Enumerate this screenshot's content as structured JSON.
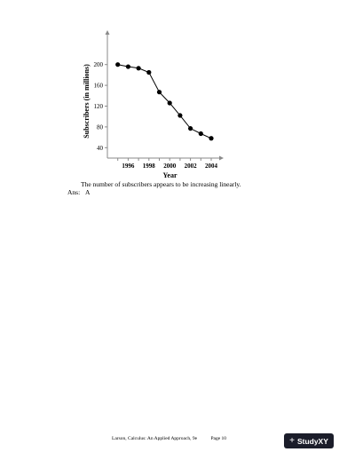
{
  "chart_data": {
    "type": "line",
    "x": [
      1995,
      1996,
      1997,
      1998,
      1999,
      2000,
      2001,
      2002,
      2003,
      2004
    ],
    "values": [
      200,
      196,
      193,
      185,
      147,
      126,
      102,
      77,
      67,
      58
    ],
    "xticks": [
      "1996",
      "1998",
      "2000",
      "2002",
      "2004"
    ],
    "yticks": [
      "40",
      "80",
      "120",
      "160",
      "200"
    ],
    "xlabel": "Year",
    "ylabel": "Subscribers (in millions)",
    "xlim": [
      1994,
      2005
    ],
    "ylim": [
      20,
      220
    ],
    "grid": false,
    "marker": "filled-circle",
    "line_color": "#000000"
  },
  "statement": "The number of subscribers appears to be increasing linearly.",
  "answer": {
    "label": "Ans:",
    "value": "A"
  },
  "footer": {
    "source": "Larson, Calculus: An Applied Approach, 9e",
    "page": "Page 10"
  },
  "brand": {
    "name": "StudyXY",
    "icon": "plus-icon"
  }
}
